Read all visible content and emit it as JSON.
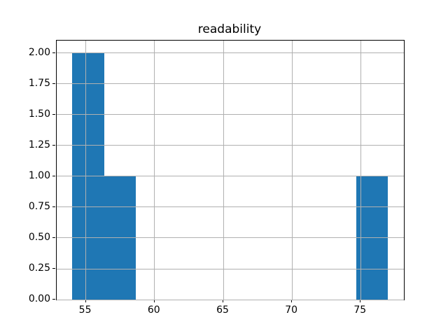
{
  "chart_data": {
    "type": "bar",
    "subtype": "histogram",
    "title": "readability",
    "xlabel": "",
    "ylabel": "",
    "bar_color": "#1f77b4",
    "grid_color": "#b0b0b0",
    "grid": true,
    "grid_above_bars": true,
    "legend": null,
    "bin_edges": [
      54.02,
      56.32,
      58.61,
      60.91,
      63.21,
      65.51,
      67.8,
      70.1,
      72.4,
      74.69,
      76.99
    ],
    "counts": [
      2,
      1,
      0,
      0,
      0,
      0,
      0,
      0,
      0,
      1
    ],
    "xlim": [
      52.88,
      78.14
    ],
    "ylim": [
      0,
      2.1
    ],
    "xticks": [
      {
        "value": 55,
        "label": "55"
      },
      {
        "value": 60,
        "label": "60"
      },
      {
        "value": 65,
        "label": "65"
      },
      {
        "value": 70,
        "label": "70"
      },
      {
        "value": 75,
        "label": "75"
      }
    ],
    "yticks": [
      {
        "value": 0.0,
        "label": "0.00"
      },
      {
        "value": 0.25,
        "label": "0.25"
      },
      {
        "value": 0.5,
        "label": "0.50"
      },
      {
        "value": 0.75,
        "label": "0.75"
      },
      {
        "value": 1.0,
        "label": "1.00"
      },
      {
        "value": 1.25,
        "label": "1.25"
      },
      {
        "value": 1.5,
        "label": "1.50"
      },
      {
        "value": 1.75,
        "label": "1.75"
      },
      {
        "value": 2.0,
        "label": "2.00"
      }
    ]
  }
}
